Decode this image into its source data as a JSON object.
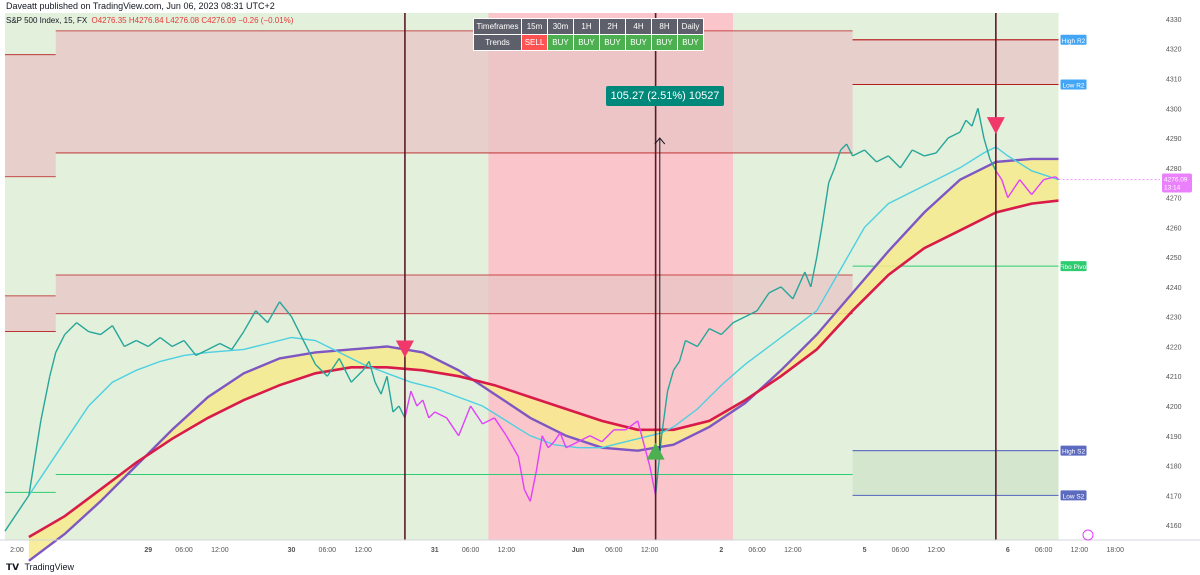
{
  "header": {
    "publisher_line": "Daveatt published on TradingView.com, Jun 06, 2023 08:31 UTC+2"
  },
  "symbol_bar": {
    "title": "S&P 500 Index, 15, FX",
    "ohlc": "O4276.35  H4276.84  L4276.08  C4276.09  −0.26 (−0.01%)"
  },
  "trend_table": {
    "header_label": "Timeframes",
    "row_label": "Trends",
    "timeframes": [
      "15m",
      "30m",
      "1H",
      "2H",
      "4H",
      "8H",
      "Daily"
    ],
    "trends": [
      "SELL",
      "BUY",
      "BUY",
      "BUY",
      "BUY",
      "BUY",
      "BUY"
    ]
  },
  "measure_callout": "105.27 (2.51%) 10527",
  "footer": {
    "brand": "TradingView"
  },
  "colors": {
    "buy_zone_bg": "#e3f0dc",
    "sell_zone_bg": "#fbc6cb",
    "resistance_zone": "#e8c4c6",
    "support_zone": "#cfe3c8",
    "price_up": "#26a69a",
    "price_down": "#e040fb",
    "ma_fast": "#4dd0e1",
    "ma_slow": "#d81b48",
    "ma_band_outer": "#7e57c2",
    "cloud_fill": "#f7ea8c",
    "vline": "#5b1a2b",
    "level_green": "#2ecc71",
    "buy_signal": "#4caf50",
    "sell_signal": "#f0386b",
    "last_price_tag": "#ea80fc"
  },
  "chart_data": {
    "type": "line",
    "title": "S&P 500 Index, 15, FX",
    "xlabel": "",
    "ylabel": "",
    "ylim": [
      4155,
      4332
    ],
    "y_ticks": [
      4160,
      4170,
      4180,
      4190,
      4200,
      4210,
      4220,
      4230,
      4240,
      4250,
      4260,
      4270,
      4280,
      4290,
      4300,
      4310,
      4320,
      4330
    ],
    "x_ticks": [
      "2:00",
      "29",
      "06:00",
      "12:00",
      "30",
      "06:00",
      "12:00",
      "31",
      "06:00",
      "12:00",
      "Jun",
      "06:00",
      "12:00",
      "2",
      "06:00",
      "12:00",
      "5",
      "06:00",
      "12:00",
      "6",
      "06:00",
      "12:00",
      "18:00"
    ],
    "x_tick_hours": [
      -22,
      0,
      6,
      12,
      24,
      30,
      36,
      48,
      54,
      60,
      72,
      78,
      84,
      96,
      102,
      108,
      120,
      126,
      132,
      144,
      150,
      156,
      162
    ],
    "x_range_hours": [
      -24,
      169.5
    ],
    "last_data_hour": 152.5,
    "background_zones": [
      {
        "from_hour": -24,
        "to_hour": 57,
        "trend": "buy"
      },
      {
        "from_hour": 57,
        "to_hour": 98,
        "trend": "sell"
      },
      {
        "from_hour": 98,
        "to_hour": 152.5,
        "trend": "buy"
      }
    ],
    "zones": [
      {
        "from_hour": -24,
        "to_hour": -15.5,
        "low": 4277,
        "high": 4318,
        "kind": "resistance"
      },
      {
        "from_hour": -15.5,
        "to_hour": 118,
        "low": 4285,
        "high": 4326,
        "kind": "resistance"
      },
      {
        "from_hour": -24,
        "to_hour": -15.5,
        "low": 4225,
        "high": 4237,
        "kind": "resistance"
      },
      {
        "from_hour": -15.5,
        "to_hour": 118,
        "low": 4231,
        "high": 4244,
        "kind": "resistance"
      },
      {
        "from_hour": 118,
        "to_hour": 152.5,
        "low": 4308,
        "high": 4323,
        "kind": "resistance"
      },
      {
        "from_hour": 118,
        "to_hour": 152.5,
        "low": 4170,
        "high": 4185,
        "kind": "support"
      }
    ],
    "levels": [
      {
        "name": "High R2",
        "value": 4323,
        "from_hour": 118,
        "color": "#b71c1c"
      },
      {
        "name": "Low R2",
        "value": 4308,
        "from_hour": 118,
        "color": "#b71c1c"
      },
      {
        "name": "Fibo Pivot",
        "value": 4247,
        "from_hour": 118,
        "color": "#2ecc71"
      },
      {
        "name": "High S2",
        "value": 4185,
        "from_hour": 118,
        "color": "#5c6bc0"
      },
      {
        "name": "Low S2",
        "value": 4170,
        "from_hour": 118,
        "color": "#5c6bc0"
      },
      {
        "name": "",
        "value": 4171,
        "from_hour": -24,
        "to_hour": -15.5,
        "color": "#2ecc71"
      },
      {
        "name": "",
        "value": 4177,
        "from_hour": -15.5,
        "to_hour": 118,
        "color": "#2ecc71"
      }
    ],
    "vertical_lines_hours": [
      43,
      85,
      142
    ],
    "signals": [
      {
        "hour": 43,
        "price": 4219,
        "type": "sell"
      },
      {
        "hour": 85,
        "price": 4185,
        "type": "buy"
      },
      {
        "hour": 142,
        "price": 4294,
        "type": "sell"
      }
    ],
    "measure_arrow": {
      "hour": 85.7,
      "from": 4185,
      "to": 4290
    },
    "last_price": {
      "value": 4276.09,
      "countdown": "13:14"
    },
    "series": [
      {
        "name": "",
        "kind": "price",
        "x": [
          -24,
          -20,
          -18,
          -16.5,
          -15.5,
          -14,
          -12,
          -10,
          -8,
          -6,
          -4,
          -2,
          0,
          2,
          4,
          6,
          8,
          10,
          12,
          14,
          16,
          18,
          20,
          22,
          24,
          26,
          28,
          30,
          32,
          34,
          36,
          37,
          38,
          39,
          40,
          41,
          42,
          43,
          44,
          45,
          46,
          47,
          48,
          50,
          52,
          54,
          56,
          58,
          60,
          62,
          63,
          64,
          65,
          66,
          67,
          68,
          69,
          70,
          72,
          74,
          76,
          78,
          80,
          82,
          84,
          85,
          86,
          87,
          88,
          89,
          90,
          92,
          94,
          96,
          98,
          100,
          102,
          104,
          106,
          108,
          110,
          111,
          112,
          113,
          114,
          115,
          116,
          117,
          118,
          120,
          122,
          124,
          126,
          128,
          130,
          132,
          134,
          136,
          137,
          138,
          139,
          140,
          141,
          142,
          143,
          144,
          145,
          146,
          148,
          150,
          152,
          152.5
        ],
        "values": [
          4158,
          4170,
          4195,
          4210,
          4218,
          4224,
          4228,
          4225,
          4224,
          4227,
          4220,
          4222,
          4220,
          4223,
          4220,
          4222,
          4217,
          4219,
          4221,
          4219,
          4225,
          4232,
          4228,
          4235,
          4230,
          4222,
          4214,
          4210,
          4216,
          4208,
          4212,
          4215,
          4208,
          4204,
          4210,
          4198,
          4200,
          4196,
          4205,
          4200,
          4202,
          4196,
          4198,
          4196,
          4190,
          4200,
          4194,
          4196,
          4190,
          4183,
          4172,
          4168,
          4178,
          4190,
          4186,
          4188,
          4191,
          4186,
          4188,
          4190,
          4188,
          4192,
          4192,
          4195,
          4180,
          4170,
          4190,
          4205,
          4212,
          4215,
          4222,
          4220,
          4226,
          4224,
          4228,
          4230,
          4232,
          4238,
          4240,
          4236,
          4245,
          4240,
          4250,
          4262,
          4275,
          4280,
          4286,
          4288,
          4284,
          4286,
          4282,
          4284,
          4280,
          4286,
          4284,
          4285,
          4290,
          4292,
          4296,
          4294,
          4300,
          4290,
          4283,
          4279,
          4276,
          4270,
          4273,
          4276,
          4271,
          4276,
          4277,
          4276.09
        ]
      },
      {
        "name": "",
        "kind": "fast_ma",
        "x": [
          -20,
          -14,
          -10,
          -6,
          -2,
          2,
          6,
          10,
          16,
          20,
          24,
          28,
          32,
          36,
          40,
          44,
          48,
          52,
          56,
          60,
          64,
          68,
          72,
          76,
          80,
          84,
          86,
          88,
          92,
          96,
          100,
          104,
          108,
          112,
          116,
          120,
          124,
          128,
          132,
          136,
          140,
          142,
          144,
          148,
          152.5
        ],
        "values": [
          4170,
          4188,
          4200,
          4208,
          4212,
          4215,
          4217,
          4218,
          4219,
          4221,
          4223,
          4222,
          4218,
          4214,
          4211,
          4208,
          4206,
          4203,
          4200,
          4195,
          4190,
          4187,
          4186,
          4186,
          4188,
          4190,
          4191,
          4193,
          4199,
          4207,
          4214,
          4220,
          4226,
          4232,
          4246,
          4260,
          4268,
          4272,
          4276,
          4280,
          4285,
          4287,
          4284,
          4279,
          4276
        ]
      },
      {
        "name": "",
        "kind": "slow_ma",
        "x": [
          -20,
          -14,
          -8,
          -2,
          4,
          10,
          16,
          22,
          28,
          34,
          40,
          46,
          52,
          58,
          64,
          70,
          76,
          82,
          88,
          94,
          100,
          106,
          112,
          118,
          124,
          130,
          136,
          142,
          148,
          152.5
        ],
        "values": [
          4156,
          4163,
          4172,
          4181,
          4189,
          4196,
          4202,
          4207,
          4211,
          4213,
          4213,
          4212,
          4210,
          4207,
          4203,
          4199,
          4195,
          4192,
          4192,
          4195,
          4202,
          4210,
          4219,
          4232,
          4244,
          4253,
          4259,
          4265,
          4268,
          4269
        ]
      },
      {
        "name": "",
        "kind": "band",
        "x": [
          -20,
          -14,
          -8,
          -2,
          4,
          10,
          16,
          22,
          28,
          34,
          40,
          46,
          52,
          58,
          64,
          70,
          76,
          82,
          88,
          94,
          100,
          106,
          112,
          118,
          124,
          130,
          136,
          142,
          148,
          152.5
        ],
        "values": [
          4148,
          4157,
          4168,
          4180,
          4192,
          4203,
          4211,
          4216,
          4218,
          4219,
          4220,
          4218,
          4212,
          4204,
          4196,
          4190,
          4186,
          4185,
          4187,
          4193,
          4201,
          4212,
          4224,
          4238,
          4252,
          4265,
          4276,
          4282,
          4283,
          4283
        ]
      }
    ]
  }
}
